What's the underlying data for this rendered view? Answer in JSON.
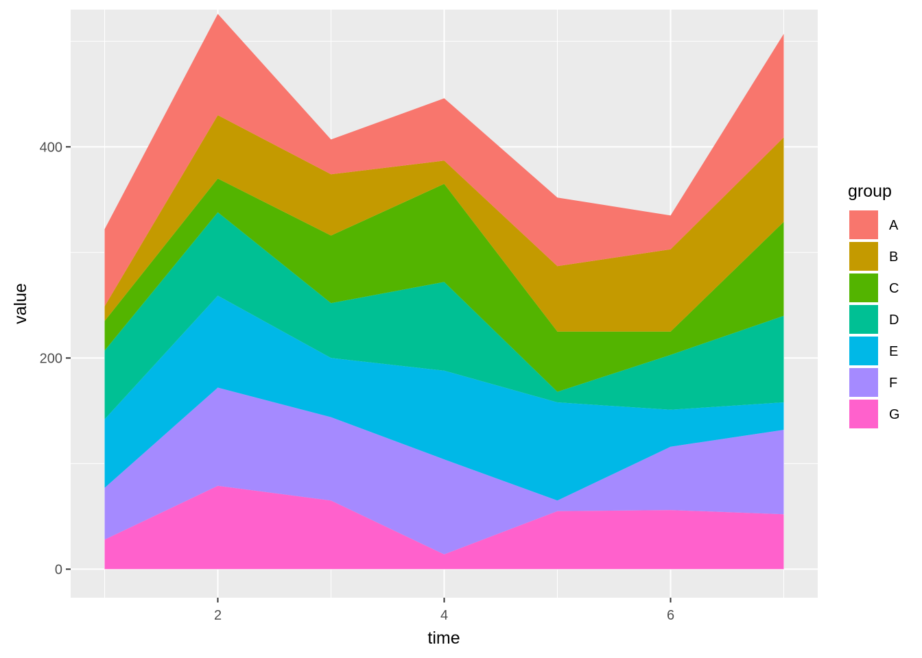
{
  "chart_data": {
    "type": "area",
    "stacked": true,
    "x": [
      1,
      2,
      3,
      4,
      5,
      6,
      7
    ],
    "xlabel": "time",
    "ylabel": "value",
    "xlim": [
      0.7,
      7.3
    ],
    "ylim": [
      -27,
      530
    ],
    "x_ticks": [
      2,
      4,
      6
    ],
    "y_ticks": [
      0,
      200,
      400
    ],
    "grid": true,
    "legend": {
      "title": "group",
      "position": "right"
    },
    "panel_background": "#ebebeb",
    "series": [
      {
        "name": "G",
        "color": "#ff61cc",
        "values": [
          28,
          79,
          65,
          14,
          55,
          56,
          52
        ]
      },
      {
        "name": "F",
        "color": "#a58aff",
        "values": [
          49,
          93,
          79,
          90,
          10,
          60,
          80
        ]
      },
      {
        "name": "E",
        "color": "#00b8e7",
        "values": [
          65,
          87,
          56,
          84,
          93,
          35,
          26
        ]
      },
      {
        "name": "D",
        "color": "#00c094",
        "values": [
          65,
          79,
          52,
          84,
          10,
          52,
          82
        ]
      },
      {
        "name": "C",
        "color": "#53b400",
        "values": [
          28,
          32,
          64,
          93,
          57,
          22,
          89
        ]
      },
      {
        "name": "B",
        "color": "#c49a00",
        "values": [
          14,
          60,
          58,
          22,
          62,
          78,
          80
        ]
      },
      {
        "name": "A",
        "color": "#f8766d",
        "values": [
          73,
          96,
          33,
          59,
          65,
          32,
          98
        ]
      }
    ],
    "legend_order": [
      "A",
      "B",
      "C",
      "D",
      "E",
      "F",
      "G"
    ]
  }
}
